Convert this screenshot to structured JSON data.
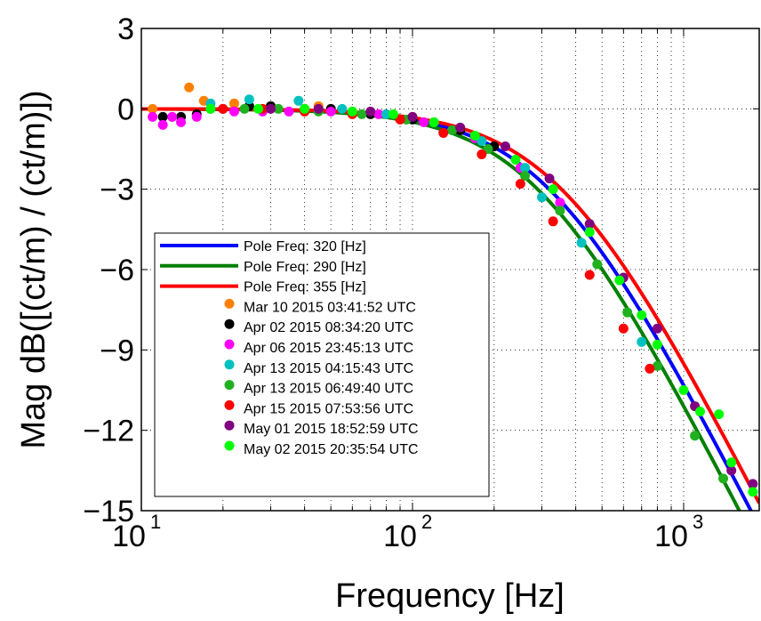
{
  "chart_data": {
    "type": "scatter",
    "title": "",
    "xlabel": "Frequency [Hz]",
    "ylabel": "Mag dB([(ct/m) / (ct/m)])",
    "xscale": "log",
    "xlim": [
      10,
      1900
    ],
    "ylim": [
      -15,
      3
    ],
    "grid": true,
    "legend_position": "bottom-left",
    "x_ticks": [
      {
        "value": 10,
        "base": "10",
        "exp": "1"
      },
      {
        "value": 100,
        "base": "10",
        "exp": "2"
      },
      {
        "value": 1000,
        "base": "10",
        "exp": "3"
      }
    ],
    "y_ticks": [
      {
        "value": 3,
        "label": "3"
      },
      {
        "value": 0,
        "label": "0"
      },
      {
        "value": -3,
        "label": "−3"
      },
      {
        "value": -6,
        "label": "−6"
      },
      {
        "value": -9,
        "label": "−9"
      },
      {
        "value": -12,
        "label": "−12"
      },
      {
        "value": -15,
        "label": "−15"
      }
    ],
    "lines": [
      {
        "name": "Pole Freq: 320 [Hz]",
        "pole_hz": 320,
        "color": "#0000ff"
      },
      {
        "name": "Pole Freq: 290 [Hz]",
        "pole_hz": 290,
        "color": "#008000"
      },
      {
        "name": "Pole Freq: 355 [Hz]",
        "pole_hz": 355,
        "color": "#ff0000"
      }
    ],
    "series": [
      {
        "name": "Mar 10 2015 03:41:52 UTC",
        "color": "#ff8000",
        "points": [
          [
            11,
            0
          ],
          [
            13,
            -0.3
          ],
          [
            15,
            0.8
          ],
          [
            17,
            0.3
          ],
          [
            22,
            0.2
          ],
          [
            30,
            0.1
          ],
          [
            45,
            0.1
          ],
          [
            60,
            -0.1
          ],
          [
            80,
            -0.2
          ],
          [
            100,
            -0.3
          ]
        ]
      },
      {
        "name": "Apr 02 2015 08:34:20 UTC",
        "color": "#000000",
        "points": [
          [
            12,
            -0.3
          ],
          [
            14,
            -0.3
          ],
          [
            16,
            -0.2
          ],
          [
            20,
            0
          ],
          [
            25,
            0.1
          ],
          [
            30,
            0.1
          ],
          [
            40,
            0
          ],
          [
            50,
            0
          ],
          [
            70,
            -0.2
          ],
          [
            100,
            -0.4
          ],
          [
            150,
            -0.8
          ],
          [
            200,
            -1.4
          ]
        ]
      },
      {
        "name": "Apr 06 2015 23:45:13 UTC",
        "color": "#ff00ff",
        "points": [
          [
            11,
            -0.3
          ],
          [
            12,
            -0.6
          ],
          [
            13,
            -0.3
          ],
          [
            14,
            -0.5
          ],
          [
            16,
            -0.3
          ],
          [
            22,
            -0.1
          ],
          [
            28,
            -0.1
          ],
          [
            35,
            -0.1
          ],
          [
            50,
            -0.1
          ],
          [
            75,
            -0.2
          ],
          [
            110,
            -0.5
          ],
          [
            170,
            -1.1
          ],
          [
            250,
            -2.2
          ],
          [
            350,
            -3.5
          ]
        ]
      },
      {
        "name": "Apr 13 2015 04:15:43 UTC",
        "color": "#00c0c0",
        "points": [
          [
            18,
            0.2
          ],
          [
            25,
            0.35
          ],
          [
            38,
            0.3
          ],
          [
            55,
            0
          ],
          [
            80,
            -0.2
          ],
          [
            120,
            -0.5
          ],
          [
            180,
            -1.2
          ],
          [
            260,
            -2.2
          ],
          [
            300,
            -3.3
          ],
          [
            420,
            -5
          ],
          [
            700,
            -8.7
          ]
        ]
      },
      {
        "name": "Apr 13 2015 06:49:40 UTC",
        "color": "#20b020",
        "points": [
          [
            18,
            0
          ],
          [
            24,
            0
          ],
          [
            32,
            0
          ],
          [
            45,
            -0.1
          ],
          [
            65,
            -0.2
          ],
          [
            95,
            -0.4
          ],
          [
            140,
            -0.8
          ],
          [
            190,
            -1.5
          ],
          [
            260,
            -2.5
          ],
          [
            350,
            -3.8
          ],
          [
            480,
            -5.8
          ],
          [
            620,
            -7.6
          ],
          [
            800,
            -9.6
          ],
          [
            1100,
            -12.2
          ],
          [
            1400,
            -13.8
          ]
        ]
      },
      {
        "name": "Apr 15 2015 07:53:56 UTC",
        "color": "#ff0000",
        "points": [
          [
            20,
            0
          ],
          [
            28,
            0
          ],
          [
            40,
            -0.1
          ],
          [
            60,
            -0.2
          ],
          [
            90,
            -0.4
          ],
          [
            130,
            -0.9
          ],
          [
            180,
            -1.7
          ],
          [
            250,
            -2.8
          ],
          [
            330,
            -4.2
          ],
          [
            450,
            -6.2
          ],
          [
            600,
            -8.2
          ],
          [
            750,
            -9.7
          ]
        ]
      },
      {
        "name": "May 01 2015 18:52:59 UTC",
        "color": "#800080",
        "points": [
          [
            30,
            0
          ],
          [
            45,
            0
          ],
          [
            70,
            -0.1
          ],
          [
            100,
            -0.3
          ],
          [
            150,
            -0.7
          ],
          [
            220,
            -1.4
          ],
          [
            320,
            -2.6
          ],
          [
            450,
            -4.3
          ],
          [
            600,
            -6.3
          ],
          [
            800,
            -8.2
          ],
          [
            1100,
            -11.1
          ],
          [
            1500,
            -13.5
          ],
          [
            1800,
            -14
          ]
        ]
      },
      {
        "name": "May 02 2015 20:35:54 UTC",
        "color": "#00ff00",
        "points": [
          [
            18,
            0
          ],
          [
            27,
            0
          ],
          [
            40,
            0
          ],
          [
            60,
            -0.1
          ],
          [
            85,
            -0.2
          ],
          [
            120,
            -0.5
          ],
          [
            170,
            -1
          ],
          [
            240,
            -1.9
          ],
          [
            330,
            -3
          ],
          [
            450,
            -4.6
          ],
          [
            580,
            -6.4
          ],
          [
            700,
            -7.7
          ],
          [
            800,
            -8.8
          ],
          [
            1000,
            -10.5
          ],
          [
            1150,
            -11.3
          ],
          [
            1350,
            -11.4
          ],
          [
            1500,
            -13.2
          ],
          [
            1800,
            -14.3
          ]
        ]
      }
    ]
  }
}
